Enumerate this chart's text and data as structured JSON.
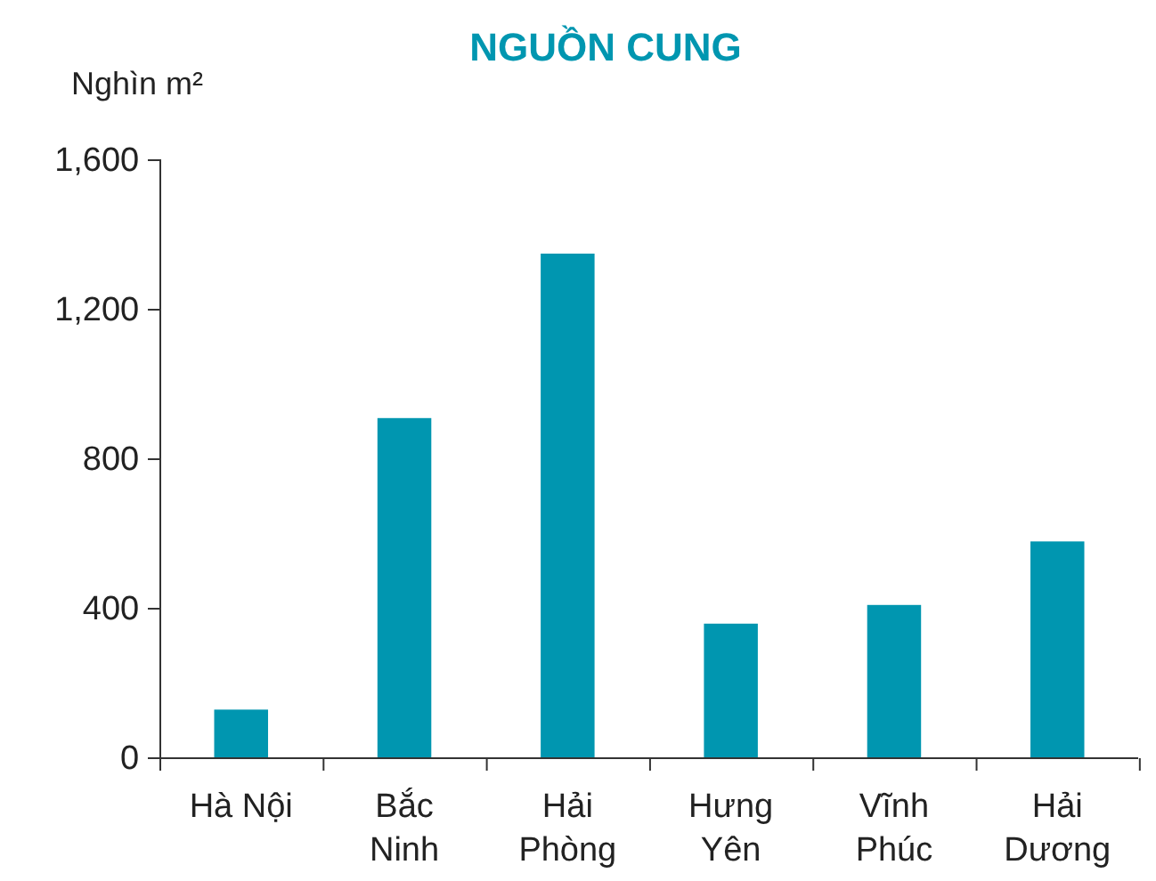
{
  "chart_data": {
    "type": "bar",
    "title": "NGUỒN CUNG",
    "ylabel": "Nghìn m²",
    "categories": [
      "Hà Nội",
      "Bắc Ninh",
      "Hải Phòng",
      "Hưng Yên",
      "Vĩnh Phúc",
      "Hải Dương"
    ],
    "values": [
      130,
      910,
      1350,
      360,
      410,
      580
    ],
    "color": "#0096b0",
    "ylim": [
      0,
      1600
    ],
    "yticks": [
      0,
      {
        "value": 400,
        "label": "400"
      },
      {
        "value": 800,
        "label": "800"
      },
      {
        "value": 1200,
        "label": "1,200"
      },
      {
        "value": 1600,
        "label": "1,600"
      }
    ],
    "grid": false
  }
}
